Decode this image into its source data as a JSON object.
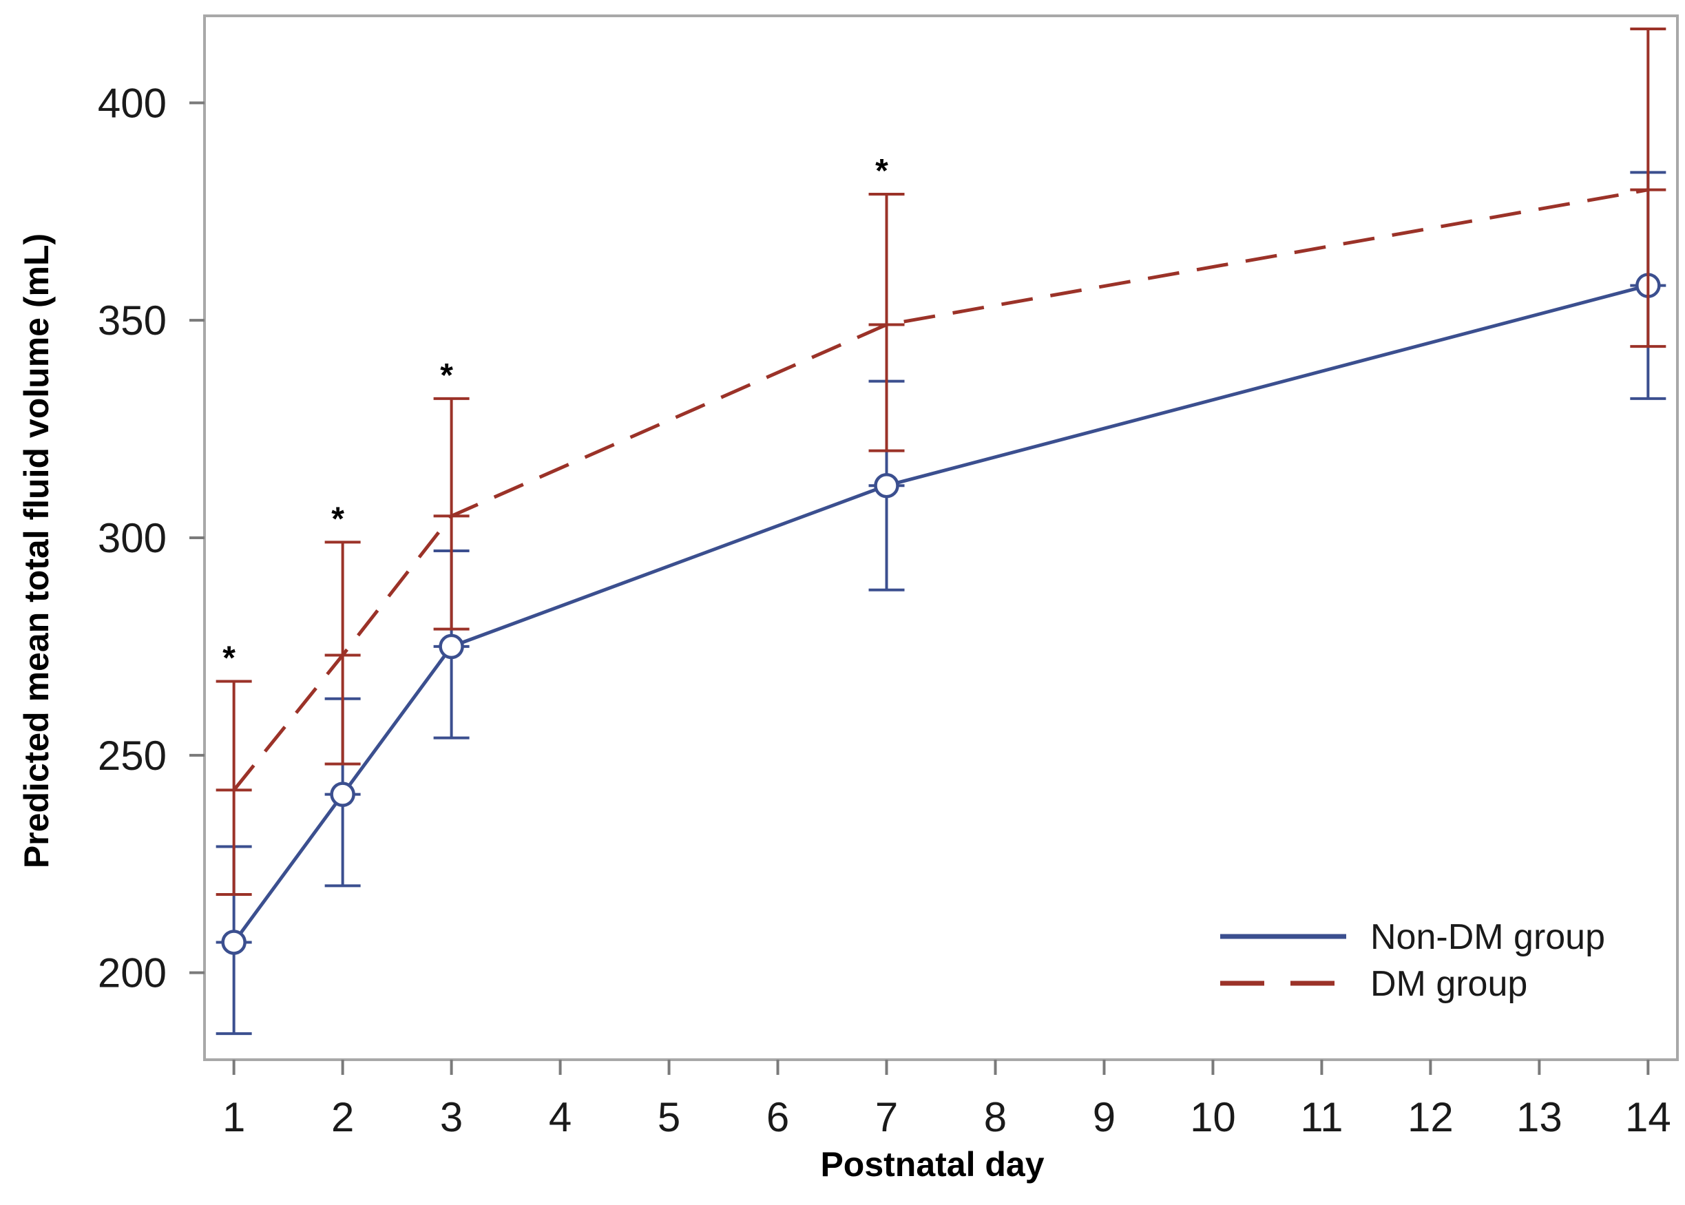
{
  "chart_data": {
    "type": "line",
    "xlabel": "Postnatal day",
    "ylabel": "Predicted mean total fluid volume (mL)",
    "x_ticks": [
      1,
      2,
      3,
      4,
      5,
      6,
      7,
      8,
      9,
      10,
      11,
      12,
      13,
      14
    ],
    "y_ticks": [
      200,
      250,
      300,
      350,
      400
    ],
    "xlim": [
      0.73,
      14.27
    ],
    "ylim": [
      180,
      420
    ],
    "grid": false,
    "legend_position": "bottom-right",
    "significant_days": [
      1,
      2,
      3,
      7
    ],
    "significance_symbol": "*",
    "series": [
      {
        "name": "Non-DM group",
        "color": "#3b4f8f",
        "line_style": "solid",
        "marker": "open-circle",
        "points": [
          {
            "x": 1,
            "y": 207,
            "lower": 186,
            "upper": 229
          },
          {
            "x": 2,
            "y": 241,
            "lower": 220,
            "upper": 263
          },
          {
            "x": 3,
            "y": 275,
            "lower": 254,
            "upper": 297
          },
          {
            "x": 7,
            "y": 312,
            "lower": 288,
            "upper": 336
          },
          {
            "x": 14,
            "y": 358,
            "lower": 332,
            "upper": 384
          }
        ]
      },
      {
        "name": "DM group",
        "color": "#9b3228",
        "line_style": "dashed",
        "marker": "none",
        "points": [
          {
            "x": 1,
            "y": 242,
            "lower": 218,
            "upper": 267
          },
          {
            "x": 2,
            "y": 273,
            "lower": 248,
            "upper": 299
          },
          {
            "x": 3,
            "y": 305,
            "lower": 279,
            "upper": 332
          },
          {
            "x": 7,
            "y": 349,
            "lower": 320,
            "upper": 379
          },
          {
            "x": 14,
            "y": 380,
            "lower": 344,
            "upper": 417
          }
        ]
      }
    ]
  }
}
